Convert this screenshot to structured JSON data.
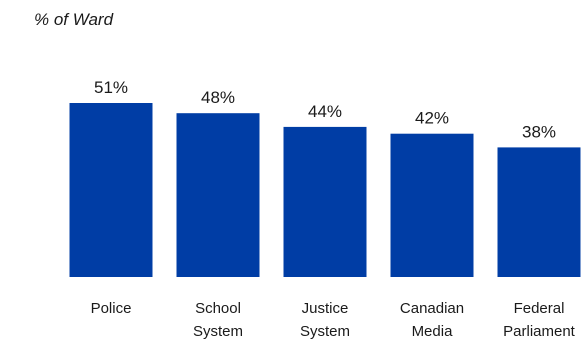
{
  "chart_data": {
    "type": "bar",
    "title": "% of Ward",
    "xlabel": "",
    "ylabel": "",
    "categories": [
      [
        "Police"
      ],
      [
        "School",
        "System"
      ],
      [
        "Justice",
        "System"
      ],
      [
        "Canadian",
        "Media"
      ],
      [
        "Federal",
        "Parliament"
      ]
    ],
    "values": [
      51,
      48,
      44,
      42,
      38
    ],
    "value_labels": [
      "51%",
      "48%",
      "44%",
      "42%",
      "38%"
    ],
    "ylim": [
      0,
      51
    ],
    "grid": false,
    "legend": "none",
    "bar_color": "#003DA5"
  }
}
